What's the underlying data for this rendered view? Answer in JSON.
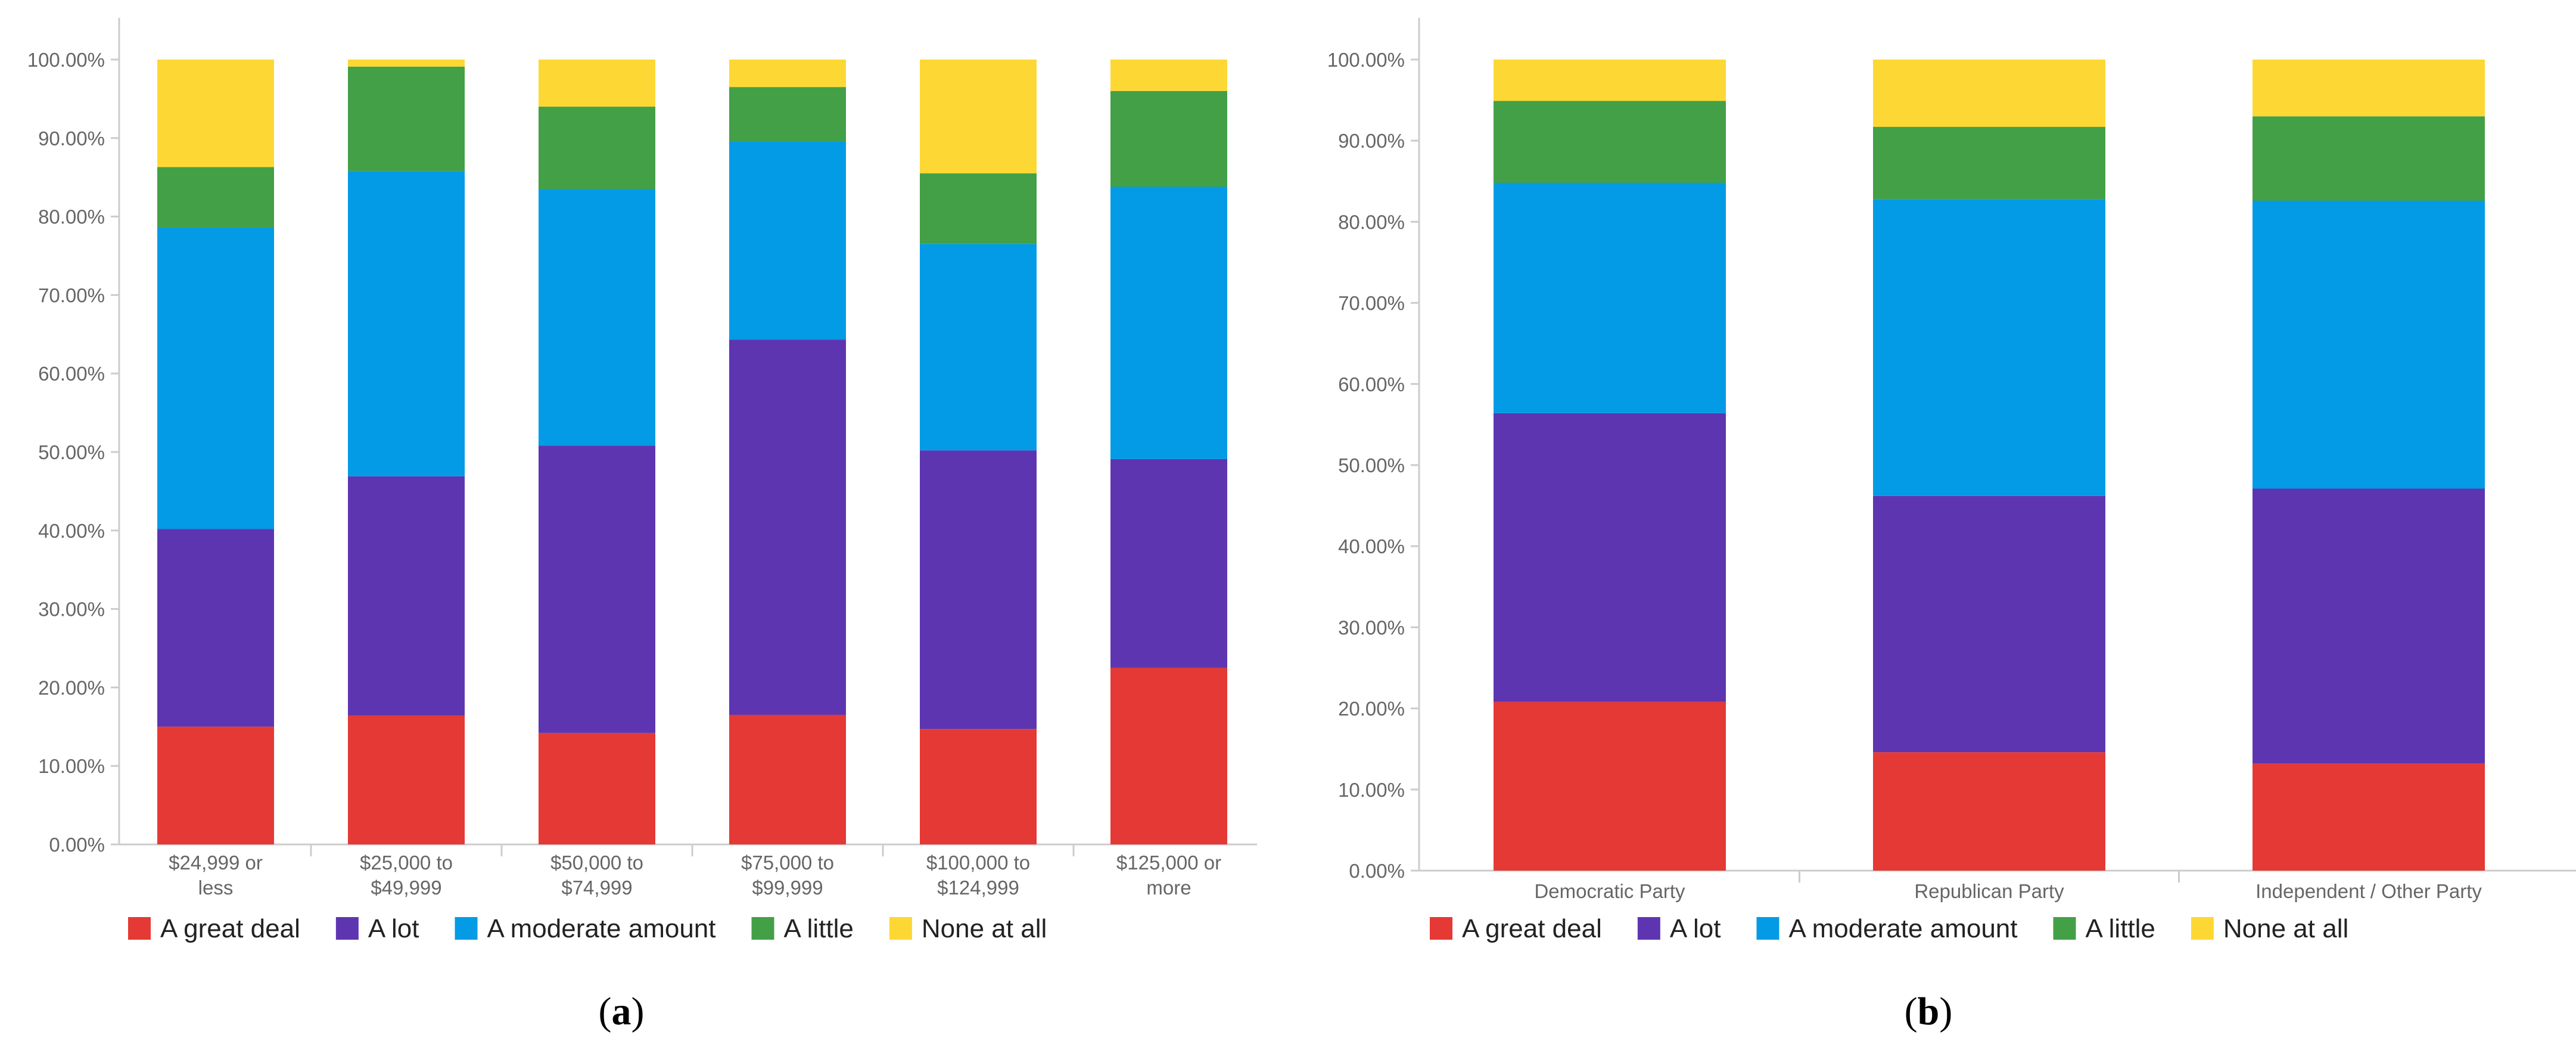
{
  "chart_data": [
    {
      "type": "bar",
      "stacked": true,
      "panel_label": "a",
      "categories": [
        [
          "$24,999 or",
          "less"
        ],
        [
          "$25,000 to",
          "$49,999"
        ],
        [
          "$50,000 to",
          "$74,999"
        ],
        [
          "$75,000 to",
          "$99,999"
        ],
        [
          "$100,000 to",
          "$124,999"
        ],
        [
          "$125,000 or",
          "more"
        ]
      ],
      "ylim": [
        0,
        100
      ],
      "yticks": [
        "0.00%",
        "10.00%",
        "20.00%",
        "30.00%",
        "40.00%",
        "50.00%",
        "60.00%",
        "70.00%",
        "80.00%",
        "90.00%",
        "100.00%"
      ],
      "series": [
        {
          "name": "A great deal",
          "color": "#e53935",
          "values": [
            15.0,
            16.4,
            14.2,
            16.5,
            14.7,
            22.5
          ]
        },
        {
          "name": "A lot",
          "color": "#5e35b1",
          "values": [
            25.2,
            30.5,
            36.6,
            47.8,
            35.5,
            26.6
          ]
        },
        {
          "name": "A moderate amount",
          "color": "#039be5",
          "values": [
            38.4,
            38.9,
            32.7,
            25.3,
            26.3,
            34.7
          ]
        },
        {
          "name": "A little",
          "color": "#43a047",
          "values": [
            7.7,
            13.3,
            10.5,
            6.9,
            9.0,
            12.2
          ]
        },
        {
          "name": "None at all",
          "color": "#fdd835",
          "values": [
            13.7,
            0.9,
            6.0,
            3.5,
            14.5,
            4.0
          ]
        }
      ],
      "legend_position": "bottom"
    },
    {
      "type": "bar",
      "stacked": true,
      "panel_label": "b",
      "categories": [
        [
          "Democratic Party"
        ],
        [
          "Republican Party"
        ],
        [
          "Independent / Other Party"
        ]
      ],
      "ylim": [
        0,
        100
      ],
      "yticks": [
        "0.00%",
        "10.00%",
        "20.00%",
        "30.00%",
        "40.00%",
        "50.00%",
        "60.00%",
        "70.00%",
        "80.00%",
        "90.00%",
        "100.00%"
      ],
      "series": [
        {
          "name": "A great deal",
          "color": "#e53935",
          "values": [
            20.8,
            14.6,
            13.2
          ]
        },
        {
          "name": "A lot",
          "color": "#5e35b1",
          "values": [
            35.6,
            31.6,
            33.9
          ]
        },
        {
          "name": "A moderate amount",
          "color": "#039be5",
          "values": [
            28.4,
            36.6,
            35.5
          ]
        },
        {
          "name": "A little",
          "color": "#43a047",
          "values": [
            10.1,
            8.9,
            10.4
          ]
        },
        {
          "name": "None at all",
          "color": "#fdd835",
          "values": [
            5.1,
            8.3,
            7.0
          ]
        }
      ],
      "legend_position": "bottom"
    }
  ]
}
